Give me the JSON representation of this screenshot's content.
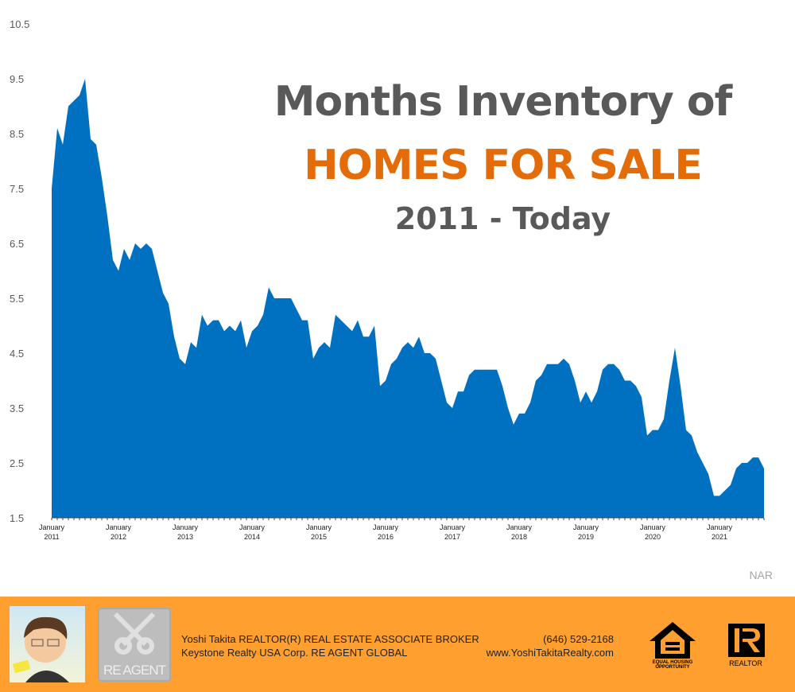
{
  "chart_data": {
    "type": "area",
    "title": [
      "Months Inventory of",
      "HOMES FOR SALE",
      "2011 - Today"
    ],
    "xlabel": "",
    "ylabel": "",
    "x_start": "2011-01",
    "x_frequency": "monthly",
    "x_tick_labels": [
      [
        "January",
        "2011"
      ],
      [
        "January",
        "2012"
      ],
      [
        "January",
        "2013"
      ],
      [
        "January",
        "2014"
      ],
      [
        "January",
        "2015"
      ],
      [
        "January",
        "2016"
      ],
      [
        "January",
        "2017"
      ],
      [
        "January",
        "2018"
      ],
      [
        "January",
        "2019"
      ],
      [
        "January",
        "2020"
      ],
      [
        "January",
        "2021"
      ]
    ],
    "y_ticks": [
      "1.5",
      "2.5",
      "3.5",
      "4.5",
      "5.5",
      "6.5",
      "7.5",
      "8.5",
      "9.5",
      "10.5"
    ],
    "ylim": [
      1.5,
      10.5
    ],
    "grid": false,
    "values": [
      7.5,
      8.6,
      8.3,
      9.0,
      9.1,
      9.2,
      9.5,
      8.4,
      8.3,
      7.7,
      7.0,
      6.2,
      6.0,
      6.4,
      6.2,
      6.5,
      6.4,
      6.5,
      6.4,
      6.0,
      5.6,
      5.4,
      4.8,
      4.4,
      4.3,
      4.7,
      4.6,
      5.2,
      5.0,
      5.1,
      5.1,
      4.9,
      5.0,
      4.9,
      5.1,
      4.6,
      4.9,
      5.0,
      5.2,
      5.7,
      5.5,
      5.5,
      5.5,
      5.5,
      5.3,
      5.1,
      5.1,
      4.4,
      4.6,
      4.7,
      4.6,
      5.2,
      5.1,
      5.0,
      4.9,
      5.1,
      4.8,
      4.8,
      5.0,
      3.9,
      4.0,
      4.3,
      4.4,
      4.6,
      4.7,
      4.6,
      4.8,
      4.5,
      4.5,
      4.4,
      4.0,
      3.6,
      3.5,
      3.8,
      3.8,
      4.1,
      4.2,
      4.2,
      4.2,
      4.2,
      4.2,
      3.9,
      3.5,
      3.2,
      3.4,
      3.4,
      3.6,
      4.0,
      4.1,
      4.3,
      4.3,
      4.3,
      4.4,
      4.3,
      4.0,
      3.6,
      3.8,
      3.6,
      3.8,
      4.2,
      4.3,
      4.3,
      4.2,
      4.0,
      4.0,
      3.9,
      3.7,
      3.0,
      3.1,
      3.1,
      3.3,
      4.0,
      4.6,
      3.9,
      3.1,
      3.0,
      2.7,
      2.5,
      2.3,
      1.9,
      1.9,
      2.0,
      2.1,
      2.4,
      2.5,
      2.5,
      2.6,
      2.6,
      2.4
    ],
    "colors": {
      "area": "#0070C0",
      "title_gray": "#595959",
      "title_orange": "#E36C09"
    }
  },
  "source": "NAR",
  "footer": {
    "background": "#FF9F2F",
    "line1": "Yoshi Takita REALTOR(R) REAL ESTATE ASSOCIATE BROKER",
    "line2": "Keystone Realty USA Corp.  RE AGENT GLOBAL",
    "phone": "(646) 529-2168",
    "website": "www.YoshiTakitaRealty.com",
    "reagent_logo": "RE AGENT",
    "eho_logo": "EQUAL HOUSING OPPORTUNITY",
    "realtor_logo": "REALTOR"
  }
}
